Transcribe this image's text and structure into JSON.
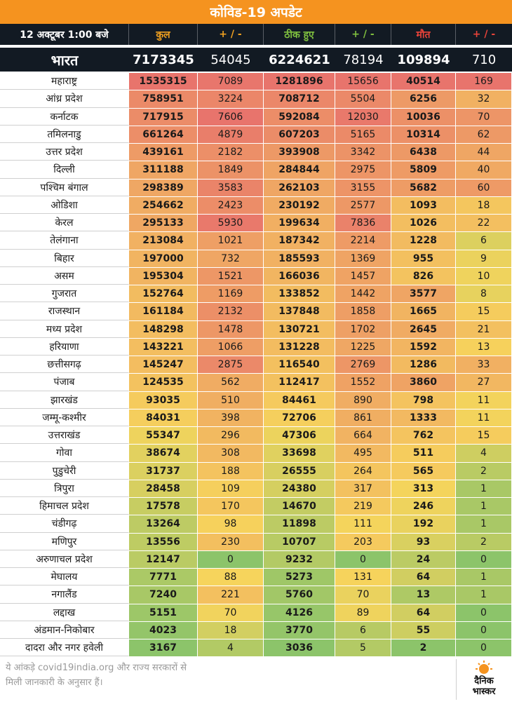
{
  "title": "कोविड-19 अपडेट",
  "header": {
    "date": "12 अक्टूबर 1:00 बजे",
    "total": "कुल",
    "pm1": "+ / -",
    "recovered": "ठीक हुए",
    "pm2": "+ / -",
    "deaths": "मौत",
    "pm3": "+ / -"
  },
  "india": {
    "name": "भारत",
    "total": "7173345",
    "total_change": "54045",
    "recovered": "6224621",
    "recovered_change": "78194",
    "deaths": "109894",
    "deaths_change": "710"
  },
  "rows": [
    {
      "name": "महाराष्ट्र",
      "total": "1535315",
      "tc": "7089",
      "rec": "1281896",
      "rc": "15656",
      "deaths": "40514",
      "dc": "169"
    },
    {
      "name": "आंध्र प्रदेश",
      "total": "758951",
      "tc": "3224",
      "rec": "708712",
      "rc": "5504",
      "deaths": "6256",
      "dc": "32"
    },
    {
      "name": "कर्नाटक",
      "total": "717915",
      "tc": "7606",
      "rec": "592084",
      "rc": "12030",
      "deaths": "10036",
      "dc": "70"
    },
    {
      "name": "तमिलनाडु",
      "total": "661264",
      "tc": "4879",
      "rec": "607203",
      "rc": "5165",
      "deaths": "10314",
      "dc": "62"
    },
    {
      "name": "उत्तर प्रदेश",
      "total": "439161",
      "tc": "2182",
      "rec": "393908",
      "rc": "3342",
      "deaths": "6438",
      "dc": "44"
    },
    {
      "name": "दिल्ली",
      "total": "311188",
      "tc": "1849",
      "rec": "284844",
      "rc": "2975",
      "deaths": "5809",
      "dc": "40"
    },
    {
      "name": "पश्चिम बंगाल",
      "total": "298389",
      "tc": "3583",
      "rec": "262103",
      "rc": "3155",
      "deaths": "5682",
      "dc": "60"
    },
    {
      "name": "ओडिशा",
      "total": "254662",
      "tc": "2423",
      "rec": "230192",
      "rc": "2577",
      "deaths": "1093",
      "dc": "18"
    },
    {
      "name": "केरल",
      "total": "295133",
      "tc": "5930",
      "rec": "199634",
      "rc": "7836",
      "deaths": "1026",
      "dc": "22"
    },
    {
      "name": "तेलंगाना",
      "total": "213084",
      "tc": "1021",
      "rec": "187342",
      "rc": "2214",
      "deaths": "1228",
      "dc": "6"
    },
    {
      "name": "बिहार",
      "total": "197000",
      "tc": "732",
      "rec": "185593",
      "rc": "1369",
      "deaths": "955",
      "dc": "9"
    },
    {
      "name": "असम",
      "total": "195304",
      "tc": "1521",
      "rec": "166036",
      "rc": "1457",
      "deaths": "826",
      "dc": "10"
    },
    {
      "name": "गुजरात",
      "total": "152764",
      "tc": "1169",
      "rec": "133852",
      "rc": "1442",
      "deaths": "3577",
      "dc": "8"
    },
    {
      "name": "राजस्थान",
      "total": "161184",
      "tc": "2132",
      "rec": "137848",
      "rc": "1858",
      "deaths": "1665",
      "dc": "15"
    },
    {
      "name": "मध्य प्रदेश",
      "total": "148298",
      "tc": "1478",
      "rec": "130721",
      "rc": "1702",
      "deaths": "2645",
      "dc": "21"
    },
    {
      "name": "हरियाणा",
      "total": "143221",
      "tc": "1066",
      "rec": "131228",
      "rc": "1225",
      "deaths": "1592",
      "dc": "13"
    },
    {
      "name": "छत्तीसगढ़",
      "total": "145247",
      "tc": "2875",
      "rec": "116540",
      "rc": "2769",
      "deaths": "1286",
      "dc": "33"
    },
    {
      "name": "पंजाब",
      "total": "124535",
      "tc": "562",
      "rec": "112417",
      "rc": "1552",
      "deaths": "3860",
      "dc": "27"
    },
    {
      "name": "झारखंड",
      "total": "93035",
      "tc": "510",
      "rec": "84461",
      "rc": "890",
      "deaths": "798",
      "dc": "11"
    },
    {
      "name": "जम्मू-कश्मीर",
      "total": "84031",
      "tc": "398",
      "rec": "72706",
      "rc": "861",
      "deaths": "1333",
      "dc": "11"
    },
    {
      "name": "उत्तराखंड",
      "total": "55347",
      "tc": "296",
      "rec": "47306",
      "rc": "664",
      "deaths": "762",
      "dc": "15"
    },
    {
      "name": "गोवा",
      "total": "38674",
      "tc": "308",
      "rec": "33698",
      "rc": "495",
      "deaths": "511",
      "dc": "4"
    },
    {
      "name": "पुडुचेरी",
      "total": "31737",
      "tc": "188",
      "rec": "26555",
      "rc": "264",
      "deaths": "565",
      "dc": "2"
    },
    {
      "name": "त्रिपुरा",
      "total": "28458",
      "tc": "109",
      "rec": "24380",
      "rc": "317",
      "deaths": "313",
      "dc": "1"
    },
    {
      "name": "हिमाचल प्रदेश",
      "total": "17578",
      "tc": "170",
      "rec": "14670",
      "rc": "219",
      "deaths": "246",
      "dc": "1"
    },
    {
      "name": "चंडीगढ़",
      "total": "13264",
      "tc": "98",
      "rec": "11898",
      "rc": "111",
      "deaths": "192",
      "dc": "1"
    },
    {
      "name": "मणिपुर",
      "total": "13556",
      "tc": "230",
      "rec": "10707",
      "rc": "203",
      "deaths": "93",
      "dc": "2"
    },
    {
      "name": "अरुणाचल प्रदेश",
      "total": "12147",
      "tc": "0",
      "rec": "9232",
      "rc": "0",
      "deaths": "24",
      "dc": "0"
    },
    {
      "name": "मेघालय",
      "total": "7771",
      "tc": "88",
      "rec": "5273",
      "rc": "131",
      "deaths": "64",
      "dc": "1"
    },
    {
      "name": "नगालैंड",
      "total": "7240",
      "tc": "221",
      "rec": "5760",
      "rc": "70",
      "deaths": "13",
      "dc": "1"
    },
    {
      "name": "लद्दाख",
      "total": "5151",
      "tc": "70",
      "rec": "4126",
      "rc": "89",
      "deaths": "64",
      "dc": "0"
    },
    {
      "name": "अंडमान-निकोबार",
      "total": "4023",
      "tc": "18",
      "rec": "3770",
      "rc": "6",
      "deaths": "55",
      "dc": "0"
    },
    {
      "name": "दादरा और नगर हवेली",
      "total": "3167",
      "tc": "4",
      "rec": "3036",
      "rc": "5",
      "deaths": "2",
      "dc": "0"
    }
  ],
  "footer": {
    "note_line1": "ये आंकड़े covid19india.org और राज्य सरकारों से",
    "note_line2": "मिली जानकारी के अनुसार हैं।",
    "brand_line1": "दैनिक",
    "brand_line2": "भास्कर"
  },
  "colors": {
    "title_bg": "#f5931f",
    "header_bg": "#121a23",
    "total_header": "#f0a020",
    "recovered_header": "#7fbf3f",
    "deaths_header": "#e8433a",
    "heat_high": "#e8746c",
    "heat_mid": "#f6d45c",
    "heat_low": "#8cc46a"
  }
}
